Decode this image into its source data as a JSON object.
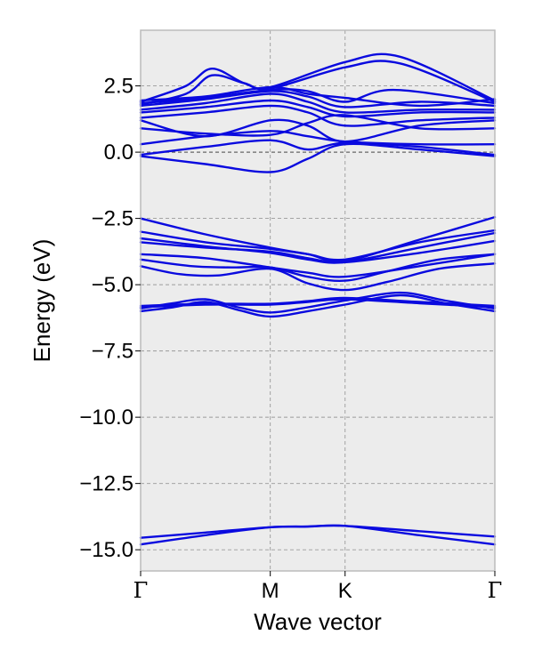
{
  "chart_data": {
    "type": "line",
    "title": "",
    "xlabel": "Wave vector",
    "ylabel": "Energy (eV)",
    "ylim": [
      -15.8,
      4.6
    ],
    "yticks": [
      2.5,
      0.0,
      -2.5,
      -5.0,
      -7.5,
      -10.0,
      -12.5,
      -15.0
    ],
    "ytick_labels": [
      "2.5",
      "0.0",
      "−2.5",
      "−5.0",
      "−7.5",
      "−10.0",
      "−12.5",
      "−15.0"
    ],
    "x_points": [
      0,
      1,
      1.577,
      2.732
    ],
    "xtick_labels": [
      "Γ",
      "M",
      "K",
      "Γ"
    ],
    "grid": true,
    "colors": {
      "band": "#0a0adf",
      "background": "#ececec",
      "grid": "#9a9a9a",
      "zero_line": "#666666"
    },
    "series": [
      {
        "x": [
          0,
          0.5,
          1,
          1.29,
          1.577,
          2.15,
          2.732
        ],
        "values": [
          -14.55,
          -14.35,
          -14.15,
          -14.12,
          -14.1,
          -14.3,
          -14.5
        ]
      },
      {
        "x": [
          0,
          0.5,
          1,
          1.29,
          1.577,
          2.15,
          2.732
        ],
        "values": [
          -14.8,
          -14.45,
          -14.15,
          -14.13,
          -14.1,
          -14.45,
          -14.8
        ]
      },
      {
        "x": [
          0,
          0.25,
          0.5,
          0.75,
          1,
          1.29,
          1.577,
          2.0,
          2.35,
          2.732
        ],
        "values": [
          -6.0,
          -5.85,
          -5.65,
          -5.95,
          -6.2,
          -6.0,
          -5.75,
          -5.4,
          -5.7,
          -6.0
        ]
      },
      {
        "x": [
          0,
          0.25,
          0.5,
          0.75,
          1,
          1.29,
          1.577,
          2.0,
          2.35,
          2.732
        ],
        "values": [
          -5.9,
          -5.7,
          -5.55,
          -5.85,
          -6.05,
          -5.85,
          -5.6,
          -5.3,
          -5.6,
          -5.9
        ]
      },
      {
        "x": [
          0,
          0.5,
          1,
          1.29,
          1.577,
          2.15,
          2.732
        ],
        "values": [
          -5.85,
          -5.75,
          -5.75,
          -5.65,
          -5.55,
          -5.7,
          -5.85
        ]
      },
      {
        "x": [
          0,
          0.5,
          1,
          1.29,
          1.577,
          2.15,
          2.732
        ],
        "values": [
          -5.8,
          -5.72,
          -5.72,
          -5.62,
          -5.5,
          -5.65,
          -5.8
        ]
      },
      {
        "x": [
          0,
          0.3,
          0.6,
          1,
          1.29,
          1.577,
          1.9,
          2.3,
          2.732
        ],
        "values": [
          -4.3,
          -4.6,
          -4.65,
          -4.4,
          -4.95,
          -5.2,
          -4.9,
          -4.4,
          -4.2
        ]
      },
      {
        "x": [
          0,
          0.4,
          0.7,
          1,
          1.29,
          1.577,
          1.9,
          2.3,
          2.732
        ],
        "values": [
          -4.05,
          -4.3,
          -4.35,
          -4.35,
          -4.7,
          -4.85,
          -4.5,
          -4.05,
          -3.85
        ]
      },
      {
        "x": [
          0,
          0.5,
          1,
          1.29,
          1.577,
          2.15,
          2.732
        ],
        "values": [
          -3.85,
          -4.0,
          -4.35,
          -4.55,
          -4.7,
          -4.3,
          -3.85
        ]
      },
      {
        "x": [
          0,
          0.5,
          1,
          1.29,
          1.577,
          2.15,
          2.732
        ],
        "values": [
          -3.4,
          -3.6,
          -3.75,
          -4.0,
          -4.15,
          -3.8,
          -3.35
        ]
      },
      {
        "x": [
          0,
          0.5,
          1,
          1.29,
          1.577,
          2.15,
          2.732
        ],
        "values": [
          -3.25,
          -3.55,
          -3.8,
          -4.05,
          -4.15,
          -3.6,
          -3.05
        ]
      },
      {
        "x": [
          0,
          0.5,
          1,
          1.29,
          1.577,
          2.15,
          2.732
        ],
        "values": [
          -3.0,
          -3.4,
          -3.65,
          -3.85,
          -4.05,
          -3.4,
          -2.95
        ]
      },
      {
        "x": [
          0,
          0.5,
          1,
          1.29,
          1.577,
          2.15,
          2.732
        ],
        "values": [
          -2.5,
          -3.1,
          -3.6,
          -3.85,
          -4.1,
          -3.3,
          -2.45
        ]
      },
      {
        "x": [
          0,
          0.5,
          1,
          1.29,
          1.577,
          2.15,
          2.732
        ],
        "values": [
          -0.15,
          -0.45,
          -0.75,
          -0.25,
          0.3,
          0.1,
          -0.15
        ]
      },
      {
        "x": [
          0,
          0.5,
          1,
          1.29,
          1.577,
          2.15,
          2.732
        ],
        "values": [
          -0.1,
          0.2,
          0.45,
          0.1,
          0.35,
          0.2,
          -0.1
        ]
      },
      {
        "x": [
          0,
          0.5,
          1,
          1.29,
          1.577,
          2.15,
          2.732
        ],
        "values": [
          0.3,
          0.6,
          0.8,
          0.6,
          0.4,
          0.3,
          0.3
        ]
      },
      {
        "x": [
          0,
          0.5,
          1,
          1.29,
          1.577,
          2.15,
          2.732
        ],
        "values": [
          0.9,
          0.7,
          0.65,
          1.1,
          1.4,
          0.9,
          0.9
        ]
      },
      {
        "x": [
          0,
          0.5,
          1,
          1.29,
          1.577,
          2.15,
          2.732
        ],
        "values": [
          1.2,
          0.6,
          1.2,
          1.0,
          0.4,
          1.0,
          1.2
        ]
      },
      {
        "x": [
          0,
          0.5,
          1,
          1.29,
          1.577,
          2.15,
          2.732
        ],
        "values": [
          1.3,
          1.5,
          1.75,
          1.5,
          1.0,
          1.2,
          1.3
        ]
      },
      {
        "x": [
          0,
          0.5,
          1,
          1.29,
          1.577,
          2.15,
          2.732
        ],
        "values": [
          1.5,
          1.7,
          1.95,
          1.7,
          1.35,
          1.5,
          1.5
        ]
      },
      {
        "x": [
          0,
          0.5,
          1,
          1.29,
          1.577,
          2.15,
          2.732
        ],
        "values": [
          1.6,
          1.85,
          2.2,
          1.9,
          1.5,
          1.6,
          1.6
        ]
      },
      {
        "x": [
          0,
          0.5,
          1,
          1.29,
          1.577,
          2.15,
          2.732
        ],
        "values": [
          1.75,
          2.0,
          2.3,
          2.1,
          1.7,
          1.9,
          1.75
        ]
      },
      {
        "x": [
          0,
          0.5,
          1,
          1.29,
          1.577,
          1.95,
          2.732
        ],
        "values": [
          1.85,
          2.05,
          2.35,
          2.3,
          1.9,
          2.35,
          1.85
        ]
      },
      {
        "x": [
          0,
          0.35,
          0.55,
          0.8,
          1,
          1.577,
          2.0,
          2.732
        ],
        "values": [
          1.9,
          2.5,
          3.15,
          2.6,
          2.45,
          3.4,
          3.6,
          1.95
        ]
      },
      {
        "x": [
          0,
          0.35,
          0.55,
          0.8,
          1,
          1.577,
          2.0,
          2.732
        ],
        "values": [
          1.8,
          2.2,
          2.9,
          2.6,
          2.4,
          3.2,
          3.35,
          1.9
        ]
      },
      {
        "x": [
          0,
          0.5,
          1,
          1.29,
          1.577,
          2.15,
          2.732
        ],
        "values": [
          1.95,
          2.1,
          2.45,
          2.2,
          2.05,
          1.75,
          2.0
        ]
      }
    ]
  }
}
